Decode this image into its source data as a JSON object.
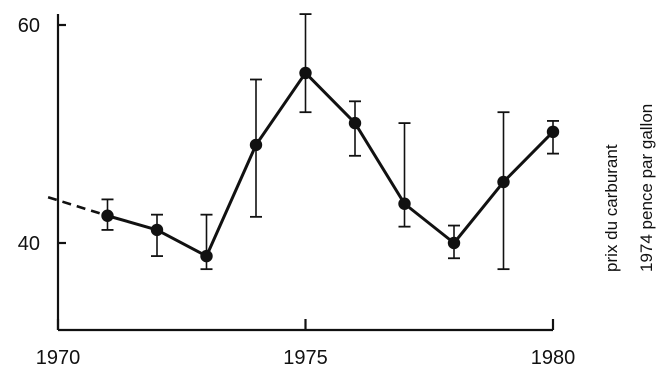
{
  "chart_data": {
    "type": "line",
    "title": "",
    "xlabel": "",
    "ylabel_lines": [
      "prix du carburant",
      "1974 pence par gallon"
    ],
    "xlim": [
      1970,
      1980
    ],
    "ylim": [
      30,
      62
    ],
    "x_ticks": [
      1970,
      1975,
      1980
    ],
    "y_ticks": [
      40,
      60
    ],
    "x_tick_labels": [
      "1970",
      "1975",
      "1980"
    ],
    "y_tick_labels": [
      "40",
      "60"
    ],
    "grid": false,
    "dashed_lead_in": {
      "x": [
        1969.8,
        1971
      ],
      "y": [
        44.2,
        42.5
      ]
    },
    "series": [
      {
        "x": [
          1971,
          1972,
          1973,
          1974,
          1975,
          1976,
          1977,
          1978,
          1979,
          1980
        ],
        "y": [
          42.5,
          41.2,
          38.8,
          49.0,
          55.6,
          51.0,
          43.6,
          40.0,
          45.6,
          50.2
        ],
        "err_low": [
          41.2,
          38.8,
          37.6,
          42.4,
          52.0,
          48.0,
          41.5,
          38.6,
          37.6,
          48.2
        ],
        "err_high": [
          44.0,
          42.6,
          42.6,
          55.0,
          61.0,
          53.0,
          51.0,
          41.6,
          52.0,
          51.2
        ]
      }
    ]
  }
}
